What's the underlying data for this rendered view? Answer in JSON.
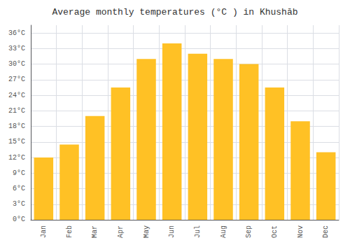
{
  "chart_data": {
    "type": "bar",
    "title": "Average monthly temperatures (°C ) in Khushāb",
    "categories": [
      "Jan",
      "Feb",
      "Mar",
      "Apr",
      "May",
      "Jun",
      "Jul",
      "Aug",
      "Sep",
      "Oct",
      "Nov",
      "Dec"
    ],
    "values": [
      12,
      14.5,
      20,
      25.5,
      31,
      34,
      32,
      31,
      30,
      25.5,
      19,
      13
    ],
    "color": "#FFC125",
    "ylim": [
      0,
      37.5
    ],
    "yticks": [
      {
        "value": 0,
        "label": "0°C"
      },
      {
        "value": 3,
        "label": "3°C"
      },
      {
        "value": 6,
        "label": "6°C"
      },
      {
        "value": 9,
        "label": "9°C"
      },
      {
        "value": 12,
        "label": "12°C"
      },
      {
        "value": 15,
        "label": "15°C"
      },
      {
        "value": 18,
        "label": "18°C"
      },
      {
        "value": 21,
        "label": "21°C"
      },
      {
        "value": 24,
        "label": "24°C"
      },
      {
        "value": 27,
        "label": "27°C"
      },
      {
        "value": 30,
        "label": "30°C"
      },
      {
        "value": 33,
        "label": "33°C"
      },
      {
        "value": 36,
        "label": "36°C"
      }
    ],
    "grid": true
  }
}
